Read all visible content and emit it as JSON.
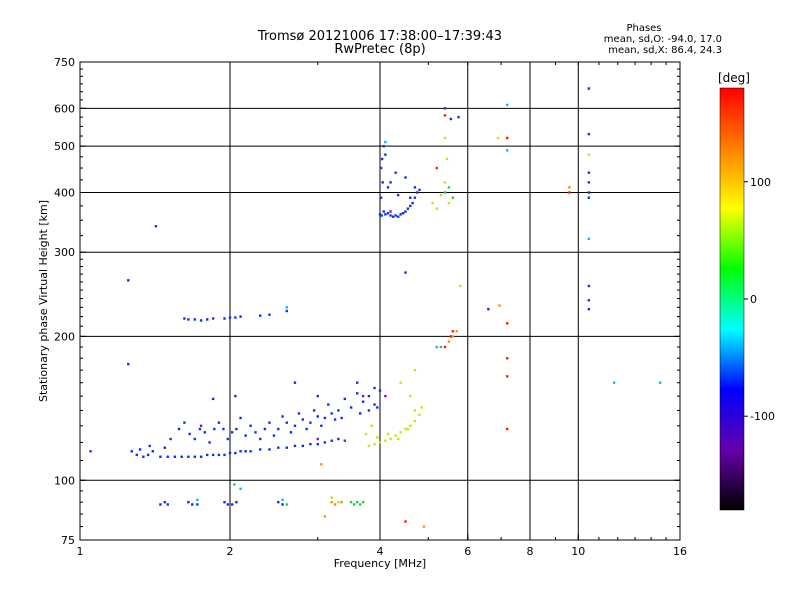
{
  "chart_data": {
    "type": "scatter",
    "title": "Tromsø 20121006 17:38:00–17:39:43",
    "subtitle": "RwPretec (8p)",
    "xlabel": "Frequency [MHz]",
    "ylabel": "Stationary phase Virtual Height [km]",
    "x_scale": "log",
    "y_scale": "log",
    "xlim": [
      1,
      16
    ],
    "ylim": [
      75,
      750
    ],
    "x_ticks": [
      1,
      2,
      4,
      6,
      8,
      10,
      16
    ],
    "y_ticks": [
      75,
      100,
      200,
      300,
      400,
      500,
      600,
      750
    ],
    "x_gridlines": [
      2,
      4,
      6,
      8,
      10
    ],
    "y_gridlines": [
      100,
      200,
      300,
      400,
      500,
      600
    ],
    "grid": true,
    "stats": {
      "heading": "Phases",
      "line1": "mean, sd,O:  -94.0,  17.0",
      "line2": "mean, sd,X:   86.4,  24.3"
    },
    "colorbar": {
      "unit": "[deg]",
      "range": [
        -180,
        180
      ],
      "ticks": [
        100,
        0,
        -100
      ],
      "colors": [
        "#ff0000",
        "#ff8000",
        "#ffff00",
        "#00ff00",
        "#00ffff",
        "#0000ff",
        "#6600aa",
        "#000000"
      ]
    },
    "series": [
      {
        "color": "#1030e8",
        "points": [
          [
            1.05,
            115
          ],
          [
            1.25,
            262
          ],
          [
            1.25,
            175
          ],
          [
            1.42,
            340
          ],
          [
            1.27,
            115
          ],
          [
            1.3,
            113
          ],
          [
            1.34,
            112
          ],
          [
            1.37,
            113
          ],
          [
            1.4,
            115
          ],
          [
            1.45,
            112
          ],
          [
            1.5,
            112
          ],
          [
            1.55,
            112
          ],
          [
            1.6,
            112
          ],
          [
            1.65,
            112
          ],
          [
            1.7,
            112
          ],
          [
            1.75,
            112
          ],
          [
            1.8,
            113
          ],
          [
            1.85,
            113
          ],
          [
            1.9,
            113
          ],
          [
            1.95,
            113
          ],
          [
            2.0,
            114
          ],
          [
            2.05,
            114
          ],
          [
            2.1,
            115
          ],
          [
            2.15,
            115
          ],
          [
            2.2,
            115
          ],
          [
            2.3,
            116
          ],
          [
            2.4,
            116
          ],
          [
            2.5,
            117
          ],
          [
            2.6,
            117
          ],
          [
            2.7,
            118
          ],
          [
            2.8,
            118
          ],
          [
            2.9,
            119
          ],
          [
            3.0,
            119
          ],
          [
            3.1,
            120
          ],
          [
            3.2,
            121
          ],
          [
            3.3,
            122
          ],
          [
            1.32,
            116
          ],
          [
            1.38,
            118
          ],
          [
            1.48,
            117
          ],
          [
            1.52,
            122
          ],
          [
            1.58,
            128
          ],
          [
            1.62,
            132
          ],
          [
            1.66,
            125
          ],
          [
            1.7,
            122
          ],
          [
            1.74,
            128
          ],
          [
            1.78,
            126
          ],
          [
            1.82,
            120
          ],
          [
            1.86,
            128
          ],
          [
            1.9,
            132
          ],
          [
            1.94,
            128
          ],
          [
            1.98,
            122
          ],
          [
            2.02,
            126
          ],
          [
            2.06,
            128
          ],
          [
            2.1,
            135
          ],
          [
            2.15,
            124
          ],
          [
            2.2,
            130
          ],
          [
            2.25,
            126
          ],
          [
            2.3,
            122
          ],
          [
            2.35,
            128
          ],
          [
            2.4,
            132
          ],
          [
            2.45,
            124
          ],
          [
            2.5,
            128
          ],
          [
            2.55,
            136
          ],
          [
            2.6,
            132
          ],
          [
            2.65,
            126
          ],
          [
            2.7,
            130
          ],
          [
            2.75,
            138
          ],
          [
            2.8,
            134
          ],
          [
            2.85,
            128
          ],
          [
            2.9,
            132
          ],
          [
            2.95,
            140
          ],
          [
            3.0,
            136
          ],
          [
            3.05,
            130
          ],
          [
            3.1,
            135
          ],
          [
            3.15,
            144
          ],
          [
            3.2,
            138
          ],
          [
            3.25,
            134
          ],
          [
            3.3,
            140
          ],
          [
            3.4,
            148
          ],
          [
            3.5,
            142
          ],
          [
            3.6,
            152
          ],
          [
            3.7,
            146
          ],
          [
            3.8,
            150
          ],
          [
            3.9,
            156
          ],
          [
            4.0,
            154
          ],
          [
            3.95,
            142
          ],
          [
            3.6,
            160
          ],
          [
            2.7,
            160
          ],
          [
            3.0,
            150
          ],
          [
            1.85,
            148
          ],
          [
            2.05,
            150
          ],
          [
            3.35,
            135
          ],
          [
            3.65,
            138
          ],
          [
            3.8,
            140
          ],
          [
            3.9,
            144
          ],
          [
            1.45,
            89
          ],
          [
            1.48,
            90
          ],
          [
            1.5,
            89
          ],
          [
            1.65,
            90
          ],
          [
            1.68,
            89
          ],
          [
            1.72,
            89
          ],
          [
            1.95,
            90
          ],
          [
            1.98,
            89
          ],
          [
            2.02,
            89
          ],
          [
            2.06,
            90
          ],
          [
            2.5,
            90
          ],
          [
            2.55,
            89
          ],
          [
            1.62,
            218
          ],
          [
            1.65,
            217
          ],
          [
            1.7,
            217
          ],
          [
            1.75,
            216
          ],
          [
            1.8,
            217
          ],
          [
            1.85,
            218
          ],
          [
            1.95,
            218
          ],
          [
            2.0,
            219
          ],
          [
            2.05,
            219
          ],
          [
            2.1,
            220
          ],
          [
            2.3,
            221
          ],
          [
            2.4,
            222
          ],
          [
            2.6,
            226
          ],
          [
            4.0,
            360
          ],
          [
            4.03,
            358
          ],
          [
            4.07,
            365
          ],
          [
            4.1,
            360
          ],
          [
            4.15,
            362
          ],
          [
            4.2,
            358
          ],
          [
            4.25,
            356
          ],
          [
            4.3,
            358
          ],
          [
            4.35,
            356
          ],
          [
            4.4,
            360
          ],
          [
            4.45,
            362
          ],
          [
            4.5,
            365
          ],
          [
            4.55,
            370
          ],
          [
            4.6,
            375
          ],
          [
            4.65,
            380
          ],
          [
            4.7,
            390
          ],
          [
            4.75,
            400
          ],
          [
            4.8,
            405
          ],
          [
            4.02,
            390
          ],
          [
            4.05,
            420
          ],
          [
            4.02,
            450
          ],
          [
            4.04,
            470
          ],
          [
            4.07,
            500
          ],
          [
            4.1,
            480
          ],
          [
            4.2,
            420
          ],
          [
            4.3,
            440
          ],
          [
            4.5,
            430
          ],
          [
            4.15,
            410
          ],
          [
            4.35,
            395
          ],
          [
            4.6,
            390
          ],
          [
            4.7,
            410
          ],
          [
            5.4,
            600
          ],
          [
            5.55,
            570
          ],
          [
            5.75,
            575
          ],
          [
            4.5,
            272
          ],
          [
            6.6,
            228
          ],
          [
            10.5,
            238
          ],
          [
            10.5,
            228
          ],
          [
            10.5,
            420
          ],
          [
            10.5,
            440
          ],
          [
            10.5,
            400
          ],
          [
            10.5,
            390
          ],
          [
            10.5,
            530
          ],
          [
            10.5,
            660
          ],
          [
            10.5,
            255
          ]
        ]
      },
      {
        "color": "#00c0ff",
        "points": [
          [
            2.04,
            98
          ],
          [
            2.1,
            96
          ],
          [
            2.6,
            230
          ],
          [
            4.1,
            510
          ],
          [
            7.2,
            610
          ],
          [
            7.2,
            490
          ],
          [
            10.5,
            320
          ],
          [
            11.8,
            160
          ],
          [
            14.6,
            160
          ],
          [
            1.72,
            91
          ],
          [
            2.55,
            91
          ],
          [
            5.2,
            190
          ]
        ]
      },
      {
        "color": "#20d040",
        "points": [
          [
            3.5,
            90
          ],
          [
            3.55,
            89
          ],
          [
            3.6,
            90
          ],
          [
            3.65,
            89
          ],
          [
            3.7,
            90
          ],
          [
            2.6,
            89
          ],
          [
            5.4,
            400
          ],
          [
            5.5,
            410
          ],
          [
            5.6,
            390
          ],
          [
            5.3,
            190
          ]
        ]
      },
      {
        "color": "#d0e010",
        "points": [
          [
            3.8,
            118
          ],
          [
            3.9,
            119
          ],
          [
            4.0,
            120
          ],
          [
            4.1,
            121
          ],
          [
            4.2,
            122
          ],
          [
            4.3,
            124
          ],
          [
            4.4,
            126
          ],
          [
            4.5,
            128
          ],
          [
            4.6,
            130
          ],
          [
            4.7,
            133
          ],
          [
            4.8,
            137
          ],
          [
            4.85,
            142
          ],
          [
            3.95,
            123
          ],
          [
            4.15,
            125
          ],
          [
            4.35,
            122
          ],
          [
            4.55,
            128
          ],
          [
            4.7,
            140
          ],
          [
            4.6,
            150
          ],
          [
            3.75,
            125
          ],
          [
            3.85,
            130
          ],
          [
            5.1,
            380
          ],
          [
            5.2,
            370
          ],
          [
            5.3,
            395
          ],
          [
            5.4,
            420
          ],
          [
            5.5,
            380
          ],
          [
            5.45,
            470
          ],
          [
            5.4,
            520
          ],
          [
            6.9,
            520
          ],
          [
            10.5,
            480
          ],
          [
            5.8,
            255
          ],
          [
            4.4,
            160
          ],
          [
            4.7,
            170
          ],
          [
            3.3,
            90
          ],
          [
            3.2,
            92
          ]
        ]
      },
      {
        "color": "#ff9000",
        "points": [
          [
            3.2,
            90
          ],
          [
            3.25,
            89
          ],
          [
            3.35,
            90
          ],
          [
            3.05,
            108
          ],
          [
            3.1,
            84
          ],
          [
            5.5,
            195
          ],
          [
            5.6,
            200
          ],
          [
            5.7,
            205
          ],
          [
            6.95,
            232
          ],
          [
            9.6,
            410
          ],
          [
            4.9,
            80
          ]
        ]
      },
      {
        "color": "#ff1a00",
        "points": [
          [
            5.4,
            190
          ],
          [
            5.55,
            200
          ],
          [
            5.6,
            205
          ],
          [
            5.2,
            450
          ],
          [
            7.2,
            520
          ],
          [
            7.2,
            213
          ],
          [
            7.2,
            180
          ],
          [
            7.2,
            165
          ],
          [
            7.2,
            128
          ],
          [
            9.6,
            400
          ],
          [
            5.4,
            580
          ],
          [
            4.5,
            82
          ]
        ]
      },
      {
        "color": "#9010c0",
        "points": [
          [
            3.0,
            122
          ],
          [
            3.4,
            121
          ],
          [
            3.7,
            150
          ],
          [
            4.1,
            150
          ],
          [
            1.75,
            130
          ],
          [
            4.2,
            365
          ]
        ]
      }
    ]
  }
}
